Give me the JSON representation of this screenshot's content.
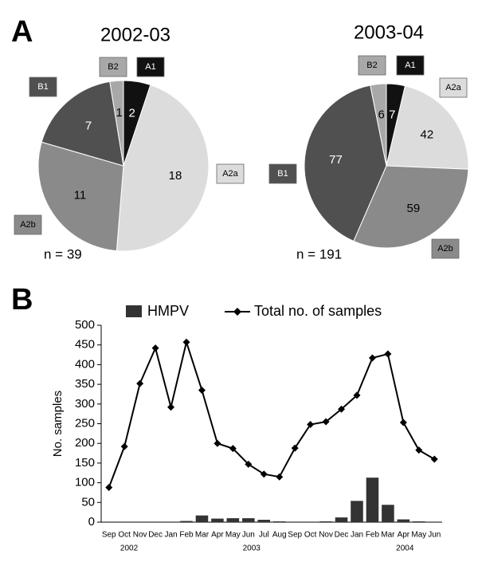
{
  "panel_labels": [
    "A",
    "B"
  ],
  "chart_data": [
    {
      "type": "pie",
      "title": "2002-03",
      "note": "n = 39",
      "categories": [
        "A1",
        "A2a",
        "A2b",
        "B1",
        "B2"
      ],
      "values": [
        2,
        18,
        11,
        7,
        1
      ],
      "colors": [
        "#111111",
        "#dcdcdc",
        "#8a8a8a",
        "#505050",
        "#a8a8a8"
      ]
    },
    {
      "type": "pie",
      "title": "2003-04",
      "note": "n = 191",
      "categories": [
        "A1",
        "A2a",
        "A2b",
        "B1",
        "B2"
      ],
      "values": [
        7,
        42,
        59,
        77,
        6
      ],
      "colors": [
        "#111111",
        "#dcdcdc",
        "#8a8a8a",
        "#505050",
        "#a8a8a8"
      ]
    },
    {
      "type": "combo",
      "ylabel": "No. samples",
      "categories": [
        "Sep",
        "Oct",
        "Nov",
        "Dec",
        "Jan",
        "Feb",
        "Mar",
        "Apr",
        "May",
        "Jun",
        "Jul",
        "Aug",
        "Sep",
        "Oct",
        "Nov",
        "Dec",
        "Jan",
        "Feb",
        "Mar",
        "Apr",
        "May",
        "Jun"
      ],
      "year_labels": [
        "2002",
        "2003",
        "2004"
      ],
      "series": [
        {
          "name": "HMPV",
          "type": "bar",
          "color": "#333333",
          "values": [
            0,
            0,
            0,
            0,
            0,
            3,
            17,
            9,
            10,
            10,
            6,
            2,
            0,
            0,
            2,
            12,
            54,
            113,
            44,
            7,
            2,
            0
          ]
        },
        {
          "name": "Total no. of samples",
          "type": "line",
          "color": "#000000",
          "values": [
            88,
            192,
            352,
            442,
            292,
            457,
            335,
            200,
            187,
            147,
            122,
            115,
            188,
            248,
            255,
            287,
            322,
            417,
            427,
            253,
            183,
            160
          ]
        }
      ],
      "ylim": [
        0,
        500
      ],
      "yticks": [
        0,
        50,
        100,
        150,
        200,
        250,
        300,
        350,
        400,
        450,
        500
      ]
    }
  ]
}
